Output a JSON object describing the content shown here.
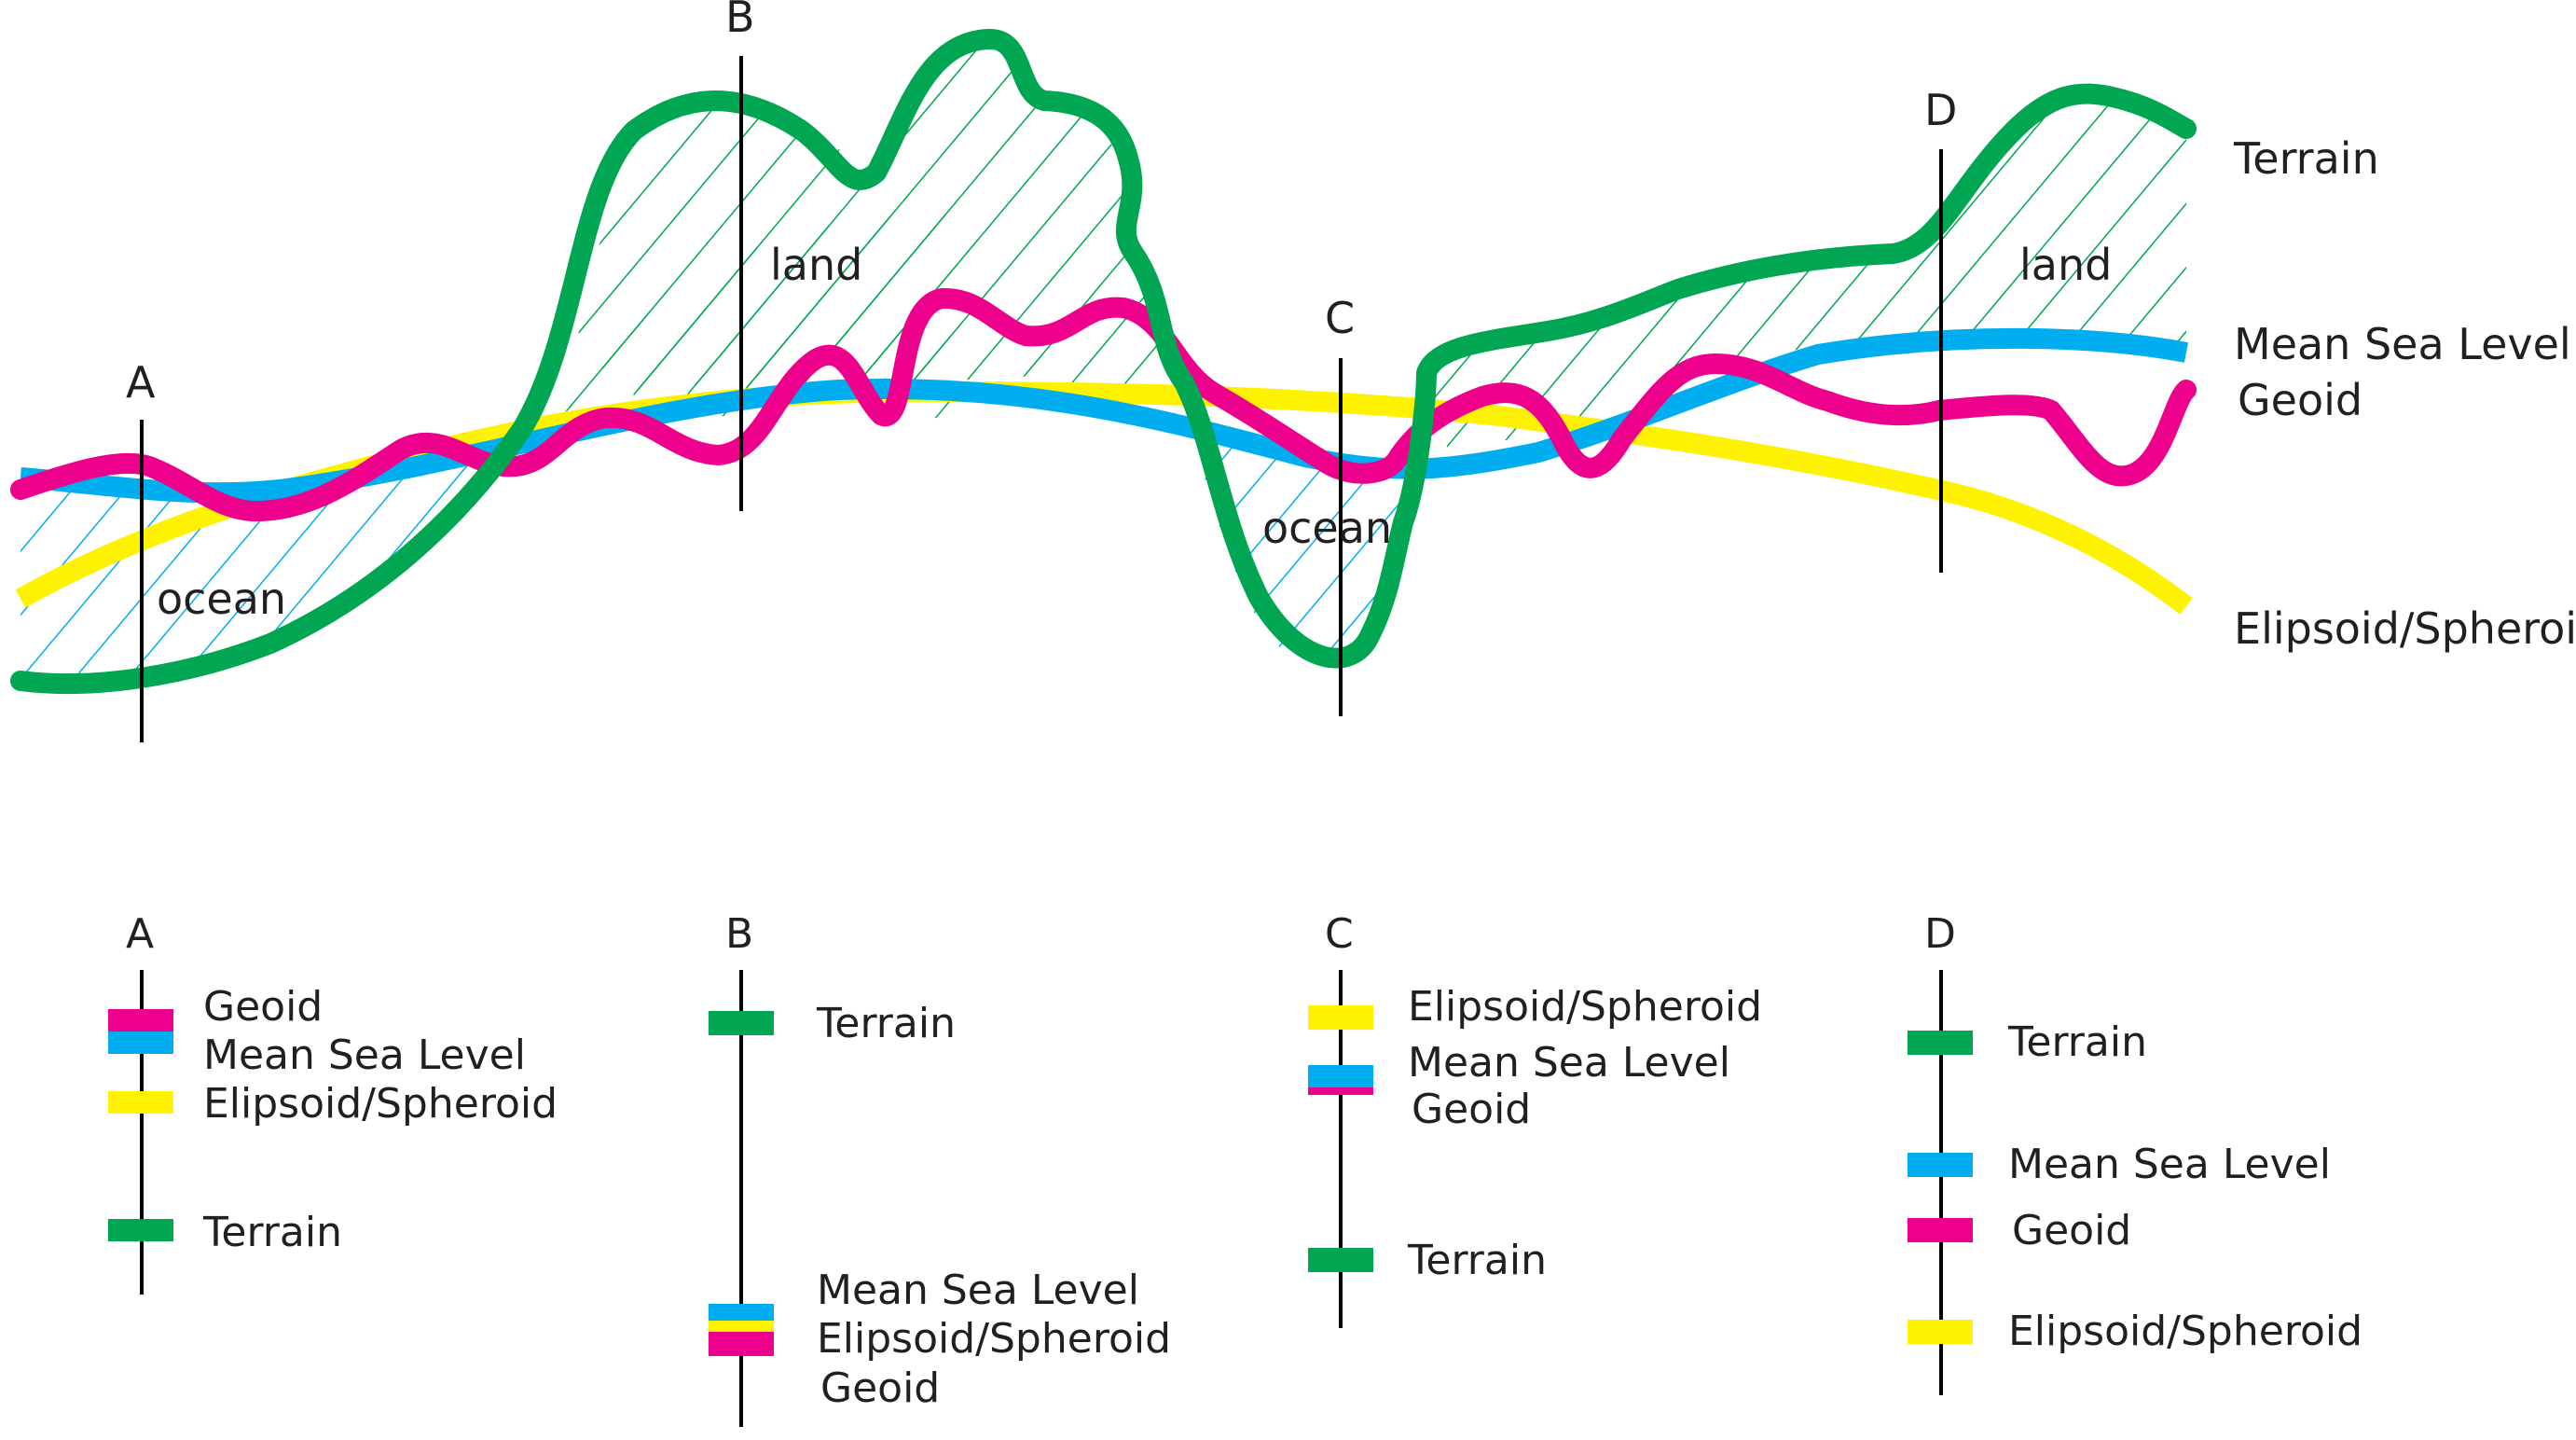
{
  "colors": {
    "terrain": "#00a651",
    "msl": "#00aeef",
    "geoid": "#ec008c",
    "ellipsoid": "#fff200",
    "text": "#231f20",
    "axis": "#000000"
  },
  "profile": {
    "section_labels": [
      "A",
      "B",
      "C",
      "D"
    ],
    "region_labels": [
      "ocean",
      "land",
      "ocean",
      "land"
    ],
    "curve_labels": {
      "terrain": "Terrain",
      "msl": "Mean Sea Level",
      "geoid": "Geoid",
      "ellipsoid": "Elipsoid/Spheroid"
    }
  },
  "legend": {
    "A": {
      "title": "A",
      "items": [
        {
          "label": "Geoid",
          "swatch": "geoid"
        },
        {
          "label": "Mean Sea Level",
          "swatch": "msl"
        },
        {
          "label": "Elipsoid/Spheroid",
          "swatch": "ellipsoid"
        },
        {
          "label": "Terrain",
          "swatch": "terrain"
        }
      ]
    },
    "B": {
      "title": "B",
      "items": [
        {
          "label": "Terrain",
          "swatch": "terrain"
        },
        {
          "label": "Mean Sea Level",
          "swatch": "msl"
        },
        {
          "label": "Elipsoid/Spheroid",
          "swatch": "ellipsoid"
        },
        {
          "label": "Geoid",
          "swatch": "geoid"
        }
      ]
    },
    "C": {
      "title": "C",
      "items": [
        {
          "label": "Elipsoid/Spheroid",
          "swatch": "ellipsoid"
        },
        {
          "label": "Mean Sea Level",
          "swatch": "msl"
        },
        {
          "label": "Geoid",
          "swatch": "geoid"
        },
        {
          "label": "Terrain",
          "swatch": "terrain"
        }
      ]
    },
    "D": {
      "title": "D",
      "items": [
        {
          "label": "Terrain",
          "swatch": "terrain"
        },
        {
          "label": "Mean Sea Level",
          "swatch": "msl"
        },
        {
          "label": "Geoid",
          "swatch": "geoid"
        },
        {
          "label": "Elipsoid/Spheroid",
          "swatch": "ellipsoid"
        }
      ]
    }
  }
}
